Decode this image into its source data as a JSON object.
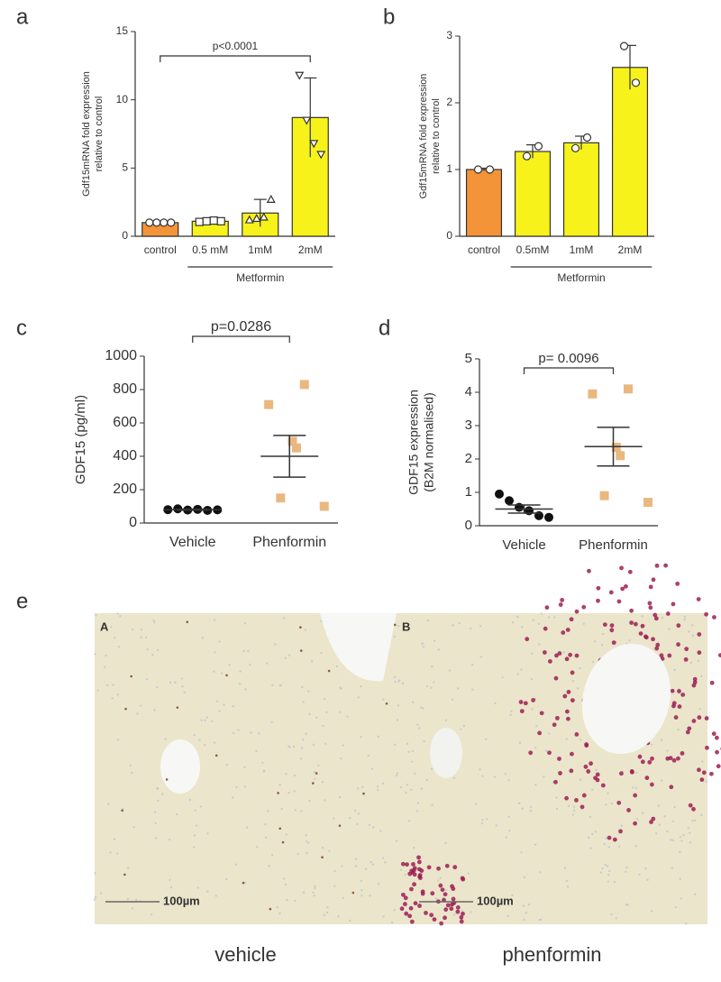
{
  "chart_data": [
    {
      "type": "bar",
      "panel_label": "a",
      "ylabel": [
        "Gdf15mRNA fold expression",
        "relative to control"
      ],
      "categories": [
        "control",
        "0.5 mM",
        "1mM",
        "2mM"
      ],
      "values": [
        1,
        1.1,
        1.7,
        8.7
      ],
      "errors": [
        0.05,
        0.1,
        1.0,
        2.9
      ],
      "points": [
        [
          1,
          1,
          1,
          1
        ],
        [
          1.05,
          1.1,
          1.15,
          1.1
        ],
        [
          1.2,
          1.3,
          1.4,
          2.7
        ],
        [
          11.8,
          8.5,
          6.8,
          6.0
        ]
      ],
      "markers": [
        "circle",
        "square",
        "triangle",
        "triangle-down"
      ],
      "colors": [
        "#f39439",
        "#f7f21a",
        "#f7f21a",
        "#f7f21a"
      ],
      "ylim": [
        0,
        15
      ],
      "yticks": [
        0,
        5,
        10,
        15
      ],
      "annotation": "p<0.0001",
      "group_label": "Metformin"
    },
    {
      "type": "bar",
      "panel_label": "b",
      "ylabel": [
        "Gdf15mRNA fold expression",
        "relative to control"
      ],
      "categories": [
        "control",
        "0.5mM",
        "1mM",
        "2mM"
      ],
      "values": [
        1,
        1.27,
        1.4,
        2.53
      ],
      "errors": [
        0.02,
        0.1,
        0.1,
        0.33
      ],
      "points": [
        [
          1,
          1
        ],
        [
          1.2,
          1.35
        ],
        [
          1.32,
          1.48
        ],
        [
          2.85,
          2.3
        ]
      ],
      "markers": [
        "circle",
        "circle",
        "circle",
        "circle"
      ],
      "colors": [
        "#f39439",
        "#f7f21a",
        "#f7f21a",
        "#f7f21a"
      ],
      "ylim": [
        0,
        3
      ],
      "yticks": [
        0,
        1,
        2,
        3
      ],
      "group_label": "Metformin"
    },
    {
      "type": "dot",
      "panel_label": "c",
      "ylabel": [
        "GDF15 (pg/ml)"
      ],
      "categories": [
        "Vehicle",
        "Phenformin"
      ],
      "points": [
        [
          80,
          85,
          78,
          82,
          76,
          79
        ],
        [
          830,
          710,
          490,
          450,
          150,
          100
        ]
      ],
      "means": [
        80,
        400
      ],
      "sems": [
        3,
        125
      ],
      "colors": [
        "#111111",
        "#e9b880"
      ],
      "ylim": [
        0,
        1000
      ],
      "yticks": [
        0,
        200,
        400,
        600,
        800,
        1000
      ],
      "annotation": "p=0.0286"
    },
    {
      "type": "dot",
      "panel_label": "d",
      "ylabel": [
        "GDF15 expression",
        "(B2M normalised)"
      ],
      "categories": [
        "Vehicle",
        "Phenformin"
      ],
      "points": [
        [
          0.95,
          0.75,
          0.55,
          0.45,
          0.3,
          0.25
        ],
        [
          4.1,
          3.95,
          2.35,
          2.1,
          0.9,
          0.7
        ]
      ],
      "means": [
        0.5,
        2.37
      ],
      "sems": [
        0.12,
        0.58
      ],
      "colors": [
        "#111111",
        "#e9b880"
      ],
      "ylim": [
        0,
        5
      ],
      "yticks": [
        0,
        1,
        2,
        3,
        4,
        5
      ],
      "annotation": "p= 0.0096"
    }
  ],
  "micrographs": {
    "panel_label": "e",
    "images": [
      {
        "label": "A",
        "scale_bar": "100µm",
        "caption": "vehicle"
      },
      {
        "label": "B",
        "scale_bar": "100µm",
        "caption": "phenformin"
      }
    ]
  }
}
